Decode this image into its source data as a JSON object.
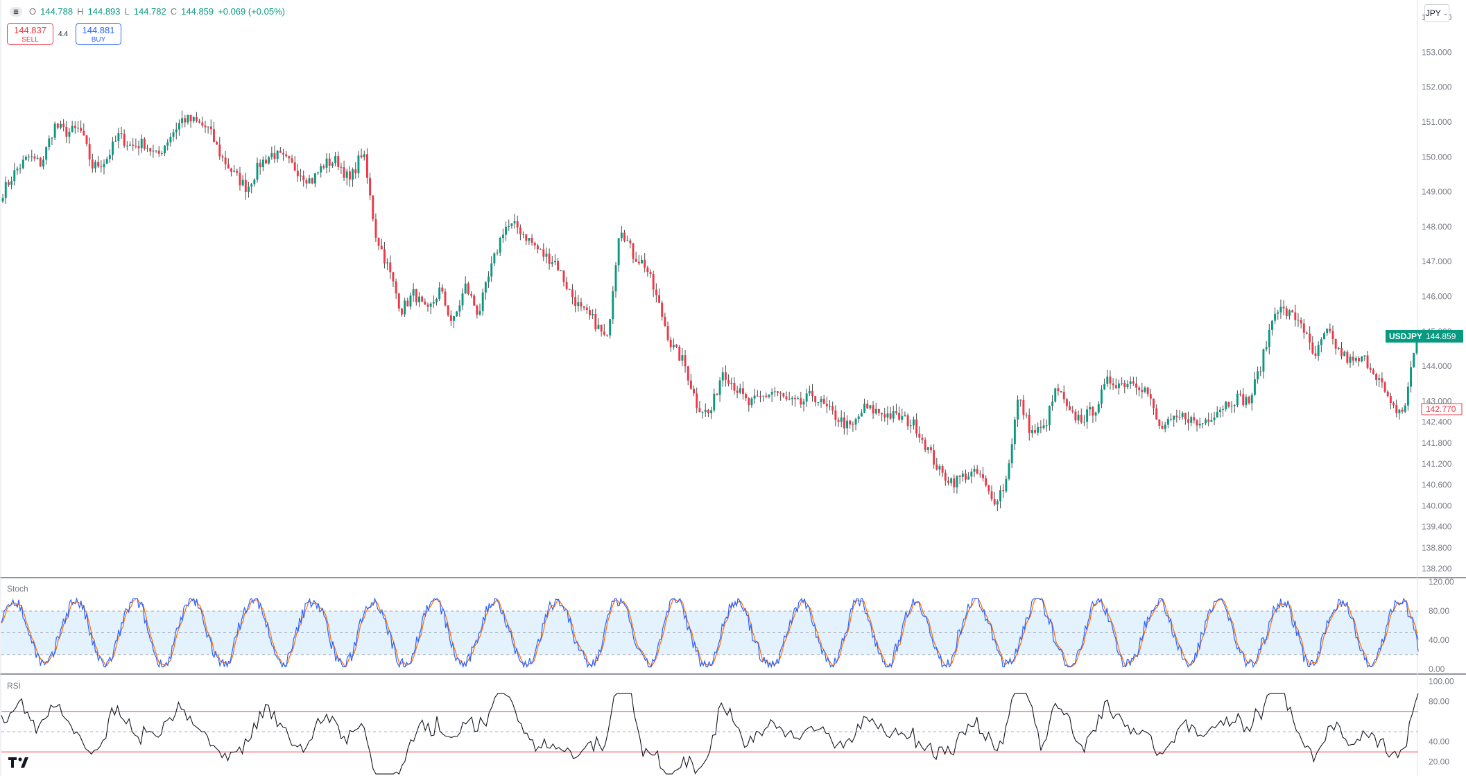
{
  "header": {
    "menu_icon": "hamburger-icon",
    "open_label": "O",
    "open_value": "144.788",
    "high_label": "H",
    "high_value": "144.893",
    "low_label": "L",
    "low_value": "144.782",
    "close_label": "C",
    "close_value": "144.859",
    "change": "+0.069 (+0.05%)"
  },
  "trade": {
    "sell_price": "144.837",
    "sell_label": "SELL",
    "spread": "4.4",
    "buy_price": "144.881",
    "buy_label": "BUY"
  },
  "currency": {
    "label": "JPY"
  },
  "colors": {
    "up": "#089981",
    "down": "#f23645",
    "stoch_k": "#2962ff",
    "stoch_d": "#ff6d00",
    "rsi": "#131722",
    "band": "#e3f2fd"
  },
  "chart_data": [
    {
      "type": "candlestick",
      "symbol": "USDJPY",
      "last_price_label": "144.859",
      "marker_price_label": "142.770",
      "yaxis_ticks": [
        "154.000",
        "153.000",
        "152.000",
        "151.000",
        "150.000",
        "149.000",
        "148.000",
        "147.000",
        "146.000",
        "145.000",
        "144.000",
        "143.000",
        "142.400",
        "141.800",
        "141.200",
        "140.600",
        "140.000",
        "139.400",
        "138.800",
        "138.200"
      ],
      "ylim": [
        138.0,
        154.3
      ],
      "close_path": [
        149.0,
        149.6,
        150.0,
        149.8,
        150.9,
        150.7,
        150.8,
        149.7,
        149.9,
        150.6,
        150.3,
        150.4,
        150.0,
        150.6,
        151.1,
        151.0,
        150.8,
        150.0,
        149.5,
        149.1,
        149.8,
        150.1,
        149.9,
        149.6,
        149.3,
        149.8,
        149.9,
        149.3,
        150.2,
        147.8,
        146.8,
        145.6,
        146.1,
        145.5,
        146.2,
        145.2,
        146.3,
        145.5,
        146.8,
        148.0,
        148.0,
        147.6,
        147.2,
        147.0,
        146.2,
        145.6,
        145.3,
        144.7,
        148.1,
        147.2,
        146.9,
        145.8,
        144.6,
        144.1,
        142.9,
        142.6,
        143.9,
        143.4,
        142.9,
        143.1,
        143.3,
        143.0,
        142.9,
        143.2,
        142.8,
        142.5,
        142.2,
        142.8,
        142.7,
        142.6,
        142.5,
        142.3,
        141.6,
        140.9,
        140.7,
        140.9,
        140.9,
        140.1,
        140.6,
        143.1,
        142.1,
        142.2,
        143.4,
        142.6,
        142.5,
        142.8,
        143.6,
        143.5,
        143.6,
        143.3,
        142.2,
        142.4,
        142.6,
        142.3,
        142.6,
        142.9,
        143.1,
        143.0,
        144.2,
        145.7,
        145.5,
        145.3,
        144.2,
        145.0,
        144.4,
        144.1,
        144.2,
        143.7,
        142.8,
        142.7,
        144.859
      ],
      "xaxis_ticks": []
    },
    {
      "type": "line",
      "title": "Stoch",
      "yaxis_ticks": [
        "120.00",
        "80.00",
        "40.00",
        "0.00"
      ],
      "ylim": [
        -5,
        125
      ],
      "band": [
        20,
        80
      ],
      "midline": 50
    },
    {
      "type": "line",
      "title": "RSI",
      "yaxis_ticks": [
        "100.00",
        "80.00",
        "40.00",
        "20.00"
      ],
      "ylim": [
        6,
        106
      ],
      "levels": [
        70,
        30
      ],
      "midline": 50
    }
  ]
}
